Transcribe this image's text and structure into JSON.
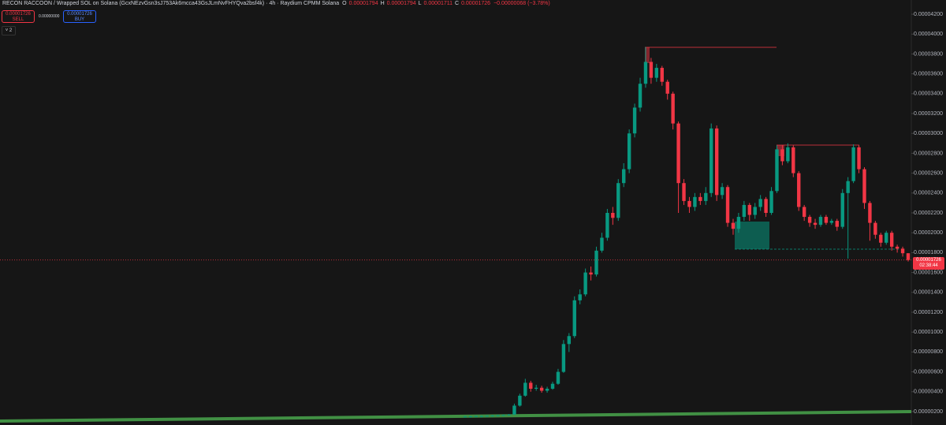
{
  "header": {
    "title": "RECON RACCOON / Wrapped SOL on Solana (GcxNEzvGsn3sJ753Ak6mcca43GsJLmNvFHYQva2bsf4k) · 4h · Raydium CPMM Solana",
    "ohlc": [
      {
        "key": "O",
        "value": "0.00001794"
      },
      {
        "key": "H",
        "value": "0.00001794"
      },
      {
        "key": "L",
        "value": "0.00001711"
      },
      {
        "key": "C",
        "value": "0.00001726"
      }
    ],
    "change": "−0.00000068 (−3.78%)"
  },
  "sell": {
    "price": "0.00001726",
    "label": "SELL"
  },
  "spread": "0.00000000",
  "buy": {
    "price": "0.00001726",
    "label": "BUY"
  },
  "indicators": "2",
  "price_tag": {
    "price": "0.00001726",
    "countdown": "02:38:44"
  },
  "chart_data": {
    "type": "candlestick",
    "up_color": "#089981",
    "down_color": "#f23645",
    "ylim": [
      6.5e-07,
      4.343e-05
    ],
    "yticks": [
      {
        "value": 2e-06,
        "label": "0.00000200"
      },
      {
        "value": 4e-06,
        "label": "0.00000400"
      },
      {
        "value": 6e-06,
        "label": "0.00000600"
      },
      {
        "value": 8e-06,
        "label": "0.00000800"
      },
      {
        "value": 1e-05,
        "label": "0.00001000"
      },
      {
        "value": 1.2e-05,
        "label": "0.00001200"
      },
      {
        "value": 1.4e-05,
        "label": "0.00001400"
      },
      {
        "value": 1.6e-05,
        "label": "0.00001600"
      },
      {
        "value": 1.8e-05,
        "label": "0.00001800"
      },
      {
        "value": 2e-05,
        "label": "0.00002000"
      },
      {
        "value": 2.2e-05,
        "label": "0.00002200"
      },
      {
        "value": 2.4e-05,
        "label": "0.00002400"
      },
      {
        "value": 2.6e-05,
        "label": "0.00002600"
      },
      {
        "value": 2.8e-05,
        "label": "0.00002800"
      },
      {
        "value": 3e-05,
        "label": "0.00003000"
      },
      {
        "value": 3.2e-05,
        "label": "0.00003200"
      },
      {
        "value": 3.4e-05,
        "label": "0.00003400"
      },
      {
        "value": 3.6e-05,
        "label": "0.00003600"
      },
      {
        "value": 3.8e-05,
        "label": "0.00003800"
      },
      {
        "value": 4e-05,
        "label": "0.00004000"
      },
      {
        "value": 4.2e-05,
        "label": "0.00004200"
      }
    ],
    "open": [
      1.48e-06,
      1.5e-06,
      1.52e-06,
      1.55e-06,
      1.55e-06,
      1.58e-06,
      1.6e-06,
      1.62e-06,
      1.65e-06,
      1.7e-06,
      2.6e-06,
      3.6e-06,
      4.9e-06,
      4.3e-06,
      4.4e-06,
      4.1e-06,
      4.3e-06,
      4.8e-06,
      6e-06,
      8.8e-06,
      9.6e-06,
      1.32e-05,
      1.38e-05,
      1.6e-05,
      1.58e-05,
      1.82e-05,
      1.95e-05,
      2.2e-05,
      2.15e-05,
      2.5e-05,
      2.64e-05,
      3e-05,
      3.26e-05,
      3.5e-05,
      3.72e-05,
      3.56e-05,
      3.66e-05,
      3.52e-05,
      3.4e-05,
      3.1e-05,
      2.5e-05,
      2.32e-05,
      2.26e-05,
      2.36e-05,
      2.32e-05,
      2.4e-05,
      3.05e-05,
      2.38e-05,
      2.46e-05,
      2.1e-05,
      2.04e-05,
      2.16e-05,
      2.28e-05,
      2.18e-05,
      2.26e-05,
      2.34e-05,
      2.2e-05,
      2.42e-05,
      2.84e-05,
      2.72e-05,
      2.86e-05,
      2.6e-05,
      2.26e-05,
      2.16e-05,
      2.1e-05,
      2.08e-05,
      2.16e-05,
      2.1e-05,
      2.12e-05,
      2.06e-05,
      2.4e-05,
      2.52e-05,
      2.86e-05,
      2.64e-05,
      2.3e-05,
      2.1e-05,
      1.98e-05,
      1.9e-05,
      2e-05,
      1.86e-05,
      1.84e-05,
      1.794e-05
    ],
    "high": [
      1.55e-06,
      1.56e-06,
      1.6e-06,
      1.6e-06,
      1.62e-06,
      1.65e-06,
      1.66e-06,
      1.7e-06,
      1.75e-06,
      2.8e-06,
      3.8e-06,
      5.3e-06,
      5.1e-06,
      4.7e-06,
      4.6e-06,
      4.5e-06,
      5e-06,
      6.3e-06,
      9.2e-06,
      9.9e-06,
      1.36e-05,
      1.43e-05,
      1.64e-05,
      1.66e-05,
      1.86e-05,
      2e-05,
      2.24e-05,
      2.26e-05,
      2.54e-05,
      2.7e-05,
      3.04e-05,
      3.3e-05,
      3.56e-05,
      3.87e-05,
      3.76e-05,
      3.7e-05,
      3.68e-05,
      3.54e-05,
      3.42e-05,
      3.12e-05,
      2.54e-05,
      2.36e-05,
      2.4e-05,
      2.4e-05,
      2.46e-05,
      3.1e-05,
      3.08e-05,
      2.5e-05,
      2.48e-05,
      2.14e-05,
      2.2e-05,
      2.32e-05,
      2.3e-05,
      2.3e-05,
      2.38e-05,
      2.36e-05,
      2.46e-05,
      2.88e-05,
      2.88e-05,
      2.9e-05,
      2.88e-05,
      2.62e-05,
      2.28e-05,
      2.18e-05,
      2.14e-05,
      2.18e-05,
      2.18e-05,
      2.14e-05,
      2.14e-05,
      2.44e-05,
      2.56e-05,
      2.89e-05,
      2.88e-05,
      2.66e-05,
      2.32e-05,
      2.12e-05,
      2e-05,
      2.02e-05,
      2.02e-05,
      1.88e-05,
      1.86e-05,
      1.794e-05
    ],
    "low": [
      1.45e-06,
      1.47e-06,
      1.5e-06,
      1.5e-06,
      1.52e-06,
      1.55e-06,
      1.57e-06,
      1.6e-06,
      1.62e-06,
      1.65e-06,
      2.5e-06,
      3.5e-06,
      4e-06,
      4.1e-06,
      3.9e-06,
      3.9e-06,
      4.2e-06,
      4.7e-06,
      5.9e-06,
      8e-06,
      9.4e-06,
      1.28e-05,
      1.36e-05,
      1.52e-05,
      1.56e-05,
      1.8e-05,
      1.92e-05,
      2.08e-05,
      2.12e-05,
      2.46e-05,
      2.6e-05,
      2.96e-05,
      3.22e-05,
      3.46e-05,
      3.5e-05,
      3.52e-05,
      3.48e-05,
      3.34e-05,
      3.04e-05,
      2.2e-05,
      2.28e-05,
      2.2e-05,
      2.22e-05,
      2.28e-05,
      2.28e-05,
      2.36e-05,
      2.32e-05,
      2.34e-05,
      2.06e-05,
      1.98e-05,
      2e-05,
      2.12e-05,
      2.12e-05,
      2.14e-05,
      2.22e-05,
      2.16e-05,
      2.18e-05,
      2.4e-05,
      2.68e-05,
      2.7e-05,
      2.56e-05,
      2.22e-05,
      2.12e-05,
      2.06e-05,
      2.04e-05,
      2.06e-05,
      2.08e-05,
      2.08e-05,
      2.02e-05,
      2.04e-05,
      1.74e-05,
      2.5e-05,
      2.6e-05,
      2.24e-05,
      1.92e-05,
      1.94e-05,
      1.86e-05,
      1.88e-05,
      1.82e-05,
      1.8e-05,
      1.76e-05,
      1.711e-05
    ],
    "close": [
      1.5e-06,
      1.52e-06,
      1.55e-06,
      1.55e-06,
      1.58e-06,
      1.6e-06,
      1.62e-06,
      1.65e-06,
      1.7e-06,
      2.6e-06,
      3.6e-06,
      4.9e-06,
      4.3e-06,
      4.4e-06,
      4.1e-06,
      4.3e-06,
      4.8e-06,
      6e-06,
      8.8e-06,
      9.6e-06,
      1.32e-05,
      1.38e-05,
      1.6e-05,
      1.58e-05,
      1.82e-05,
      1.95e-05,
      2.2e-05,
      2.15e-05,
      2.5e-05,
      2.64e-05,
      3e-05,
      3.26e-05,
      3.5e-05,
      3.72e-05,
      3.56e-05,
      3.66e-05,
      3.52e-05,
      3.4e-05,
      3.1e-05,
      2.5e-05,
      2.32e-05,
      2.26e-05,
      2.36e-05,
      2.32e-05,
      2.4e-05,
      3.05e-05,
      2.38e-05,
      2.46e-05,
      2.1e-05,
      2.04e-05,
      2.16e-05,
      2.28e-05,
      2.18e-05,
      2.26e-05,
      2.34e-05,
      2.2e-05,
      2.42e-05,
      2.84e-05,
      2.72e-05,
      2.86e-05,
      2.6e-05,
      2.26e-05,
      2.16e-05,
      2.1e-05,
      2.08e-05,
      2.16e-05,
      2.1e-05,
      2.12e-05,
      2.06e-05,
      2.4e-05,
      2.52e-05,
      2.86e-05,
      2.64e-05,
      2.3e-05,
      2.1e-05,
      1.98e-05,
      1.9e-05,
      2e-05,
      1.86e-05,
      1.84e-05,
      1.794e-05,
      1.726e-05
    ]
  }
}
